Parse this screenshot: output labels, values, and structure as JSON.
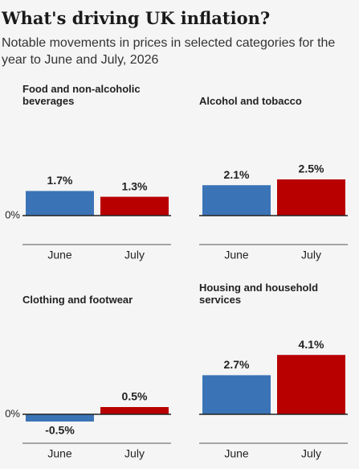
{
  "title": "What's driving UK inflation?",
  "subtitle": "Notable movements in prices in selected categories for the year to June and July, 2026",
  "chart_data": [
    {
      "type": "bar",
      "title": "Food and non-alcoholic beverages",
      "categories": [
        "June",
        "July"
      ],
      "values": [
        1.7,
        1.3
      ],
      "value_labels": [
        "1.7%",
        "1.3%"
      ],
      "colors": [
        "#3b74b6",
        "#b90000"
      ],
      "ylim": [
        -2,
        5
      ],
      "yticks": [
        {
          "value": 0,
          "label": "0%"
        }
      ]
    },
    {
      "type": "bar",
      "title": "Alcohol and tobacco",
      "categories": [
        "June",
        "July"
      ],
      "values": [
        2.1,
        2.5
      ],
      "value_labels": [
        "2.1%",
        "2.5%"
      ],
      "colors": [
        "#3b74b6",
        "#b90000"
      ],
      "ylim": [
        -2,
        5
      ]
    },
    {
      "type": "bar",
      "title": "Clothing and footwear",
      "categories": [
        "June",
        "July"
      ],
      "values": [
        -0.5,
        0.5
      ],
      "value_labels": [
        "-0.5%",
        "0.5%"
      ],
      "colors": [
        "#3b74b6",
        "#b90000"
      ],
      "ylim": [
        -2,
        5
      ],
      "yticks": [
        {
          "value": 0,
          "label": "0%"
        }
      ]
    },
    {
      "type": "bar",
      "title": "Housing and household services",
      "categories": [
        "June",
        "July"
      ],
      "values": [
        2.7,
        4.1
      ],
      "value_labels": [
        "2.7%",
        "4.1%"
      ],
      "colors": [
        "#3b74b6",
        "#b90000"
      ],
      "ylim": [
        -2,
        5
      ]
    }
  ]
}
